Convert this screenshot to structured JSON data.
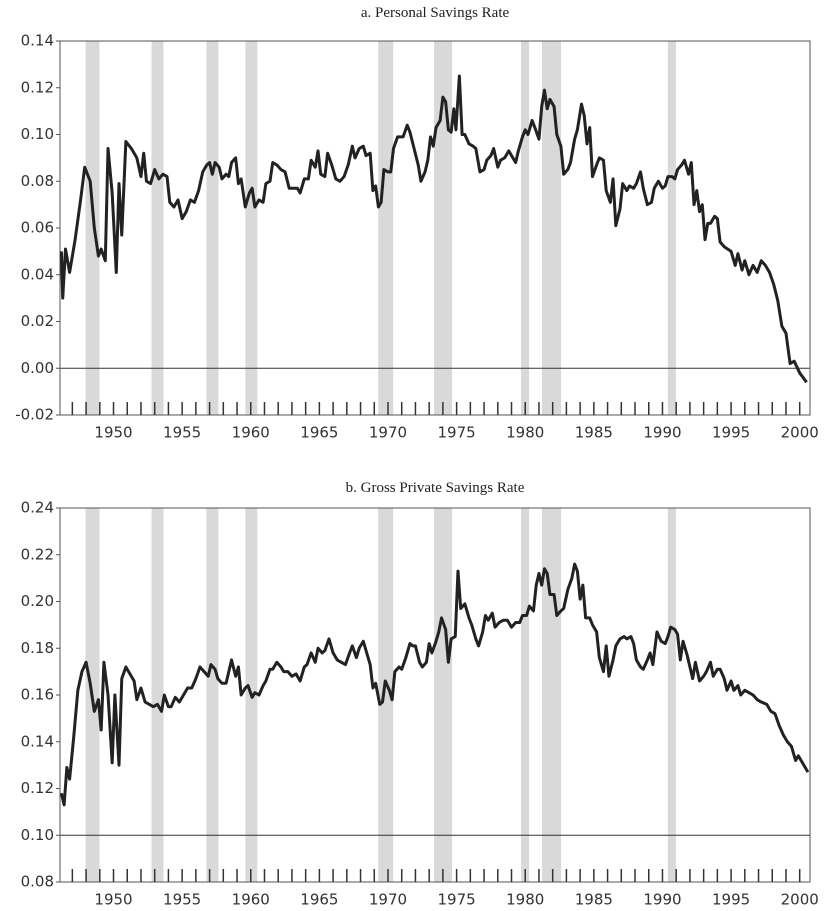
{
  "chart_data": [
    {
      "type": "line",
      "title": "a. Personal Savings Rate",
      "xlim": [
        1946.1,
        2000.75
      ],
      "ylim": [
        -0.02,
        0.14
      ],
      "xticks": [
        1950,
        1955,
        1960,
        1965,
        1970,
        1975,
        1980,
        1985,
        1990,
        1995,
        2000
      ],
      "xminorticks": [
        1947,
        1948,
        1949,
        1951,
        1952,
        1953,
        1954,
        1956,
        1957,
        1958,
        1959,
        1961,
        1962,
        1963,
        1964,
        1966,
        1967,
        1968,
        1969,
        1971,
        1972,
        1973,
        1974,
        1976,
        1977,
        1978,
        1979,
        1981,
        1982,
        1983,
        1984,
        1986,
        1987,
        1988,
        1989,
        1991,
        1992,
        1993,
        1994,
        1996,
        1997,
        1998,
        1999
      ],
      "yticks": [
        0.14,
        0.12,
        {
          "value": 0.1,
          "label": "0.10"
        },
        0.08,
        0.06,
        0.04,
        0.02,
        {
          "value": 0,
          "label": "0.00"
        },
        -0.02
      ],
      "hline": 0,
      "recession_color": "#d9d9d9",
      "recessions": [
        [
          1947.96,
          1948.98
        ],
        [
          1952.77,
          1953.64
        ],
        [
          1956.77,
          1957.64
        ],
        [
          1959.61,
          1960.48
        ],
        [
          1969.29,
          1970.38
        ],
        [
          1973.36,
          1974.67
        ],
        [
          1979.69,
          1980.28
        ],
        [
          1981.22,
          1982.61
        ],
        [
          1990.39,
          1990.98
        ]
      ],
      "color": "#222222",
      "x": [
        1946.2,
        1946.3,
        1946.5,
        1946.8,
        1947.2,
        1947.6,
        1947.9,
        1948.3,
        1948.6,
        1948.9,
        1949.1,
        1949.4,
        1949.6,
        1949.9,
        1950.2,
        1950.4,
        1950.6,
        1950.9,
        1951.3,
        1951.7,
        1952.0,
        1952.2,
        1952.4,
        1952.7,
        1953.0,
        1953.3,
        1953.6,
        1953.9,
        1954.1,
        1954.4,
        1954.7,
        1955.0,
        1955.3,
        1955.6,
        1955.9,
        1956.2,
        1956.5,
        1956.8,
        1957.0,
        1957.2,
        1957.4,
        1957.7,
        1957.9,
        1958.2,
        1958.4,
        1958.6,
        1958.9,
        1959.1,
        1959.3,
        1959.6,
        1959.9,
        1960.1,
        1960.3,
        1960.6,
        1960.9,
        1961.1,
        1961.4,
        1961.6,
        1961.9,
        1962.2,
        1962.5,
        1962.8,
        1963.1,
        1963.4,
        1963.6,
        1963.9,
        1964.2,
        1964.4,
        1964.7,
        1964.9,
        1965.1,
        1965.4,
        1965.6,
        1965.9,
        1966.2,
        1966.5,
        1966.8,
        1967.1,
        1967.4,
        1967.6,
        1967.9,
        1968.2,
        1968.4,
        1968.7,
        1968.9,
        1969.1,
        1969.3,
        1969.5,
        1969.7,
        1970.0,
        1970.2,
        1970.4,
        1970.7,
        1970.9,
        1971.1,
        1971.4,
        1971.6,
        1971.9,
        1972.2,
        1972.4,
        1972.7,
        1972.9,
        1973.1,
        1973.3,
        1973.5,
        1973.8,
        1974.0,
        1974.2,
        1974.4,
        1974.6,
        1974.8,
        1974.95,
        1975.2,
        1975.4,
        1975.6,
        1975.9,
        1976.2,
        1976.4,
        1976.7,
        1977.0,
        1977.2,
        1977.5,
        1977.7,
        1978.0,
        1978.2,
        1978.5,
        1978.8,
        1979.0,
        1979.3,
        1979.5,
        1979.8,
        1980.0,
        1980.2,
        1980.5,
        1980.7,
        1981.0,
        1981.2,
        1981.4,
        1981.6,
        1981.8,
        1982.1,
        1982.3,
        1982.6,
        1982.8,
        1983.1,
        1983.3,
        1983.6,
        1983.8,
        1984.1,
        1984.3,
        1984.5,
        1984.7,
        1984.9,
        1985.2,
        1985.4,
        1985.7,
        1985.9,
        1986.2,
        1986.4,
        1986.6,
        1986.9,
        1987.1,
        1987.4,
        1987.6,
        1987.9,
        1988.1,
        1988.4,
        1988.6,
        1988.9,
        1989.2,
        1989.4,
        1989.7,
        1990.0,
        1990.2,
        1990.4,
        1990.7,
        1990.9,
        1991.1,
        1991.4,
        1991.6,
        1991.9,
        1992.1,
        1992.3,
        1992.5,
        1992.7,
        1992.9,
        1993.1,
        1993.3,
        1993.5,
        1993.8,
        1994.0,
        1994.2,
        1994.5,
        1995.0,
        1995.3,
        1995.5,
        1995.8,
        1996.0,
        1996.3,
        1996.6,
        1996.9,
        1997.2,
        1997.5,
        1997.8,
        1998.1,
        1998.4,
        1998.7,
        1999.0,
        1999.3,
        1999.6,
        2000.0,
        2000.5
      ],
      "values": [
        0.05,
        0.03,
        0.051,
        0.041,
        0.055,
        0.072,
        0.086,
        0.08,
        0.06,
        0.048,
        0.051,
        0.046,
        0.094,
        0.075,
        0.041,
        0.079,
        0.057,
        0.097,
        0.094,
        0.09,
        0.082,
        0.092,
        0.08,
        0.079,
        0.085,
        0.081,
        0.083,
        0.082,
        0.071,
        0.069,
        0.072,
        0.064,
        0.067,
        0.072,
        0.071,
        0.076,
        0.084,
        0.087,
        0.088,
        0.083,
        0.088,
        0.086,
        0.081,
        0.083,
        0.082,
        0.088,
        0.09,
        0.079,
        0.081,
        0.069,
        0.075,
        0.077,
        0.069,
        0.072,
        0.071,
        0.079,
        0.08,
        0.088,
        0.087,
        0.085,
        0.084,
        0.077,
        0.077,
        0.077,
        0.075,
        0.081,
        0.081,
        0.089,
        0.086,
        0.093,
        0.083,
        0.082,
        0.092,
        0.087,
        0.081,
        0.08,
        0.082,
        0.087,
        0.095,
        0.09,
        0.094,
        0.095,
        0.091,
        0.092,
        0.076,
        0.078,
        0.069,
        0.071,
        0.085,
        0.084,
        0.084,
        0.094,
        0.099,
        0.099,
        0.099,
        0.104,
        0.101,
        0.094,
        0.087,
        0.08,
        0.084,
        0.089,
        0.099,
        0.095,
        0.103,
        0.106,
        0.116,
        0.114,
        0.102,
        0.101,
        0.111,
        0.102,
        0.125,
        0.1,
        0.1,
        0.096,
        0.095,
        0.094,
        0.084,
        0.085,
        0.089,
        0.091,
        0.094,
        0.086,
        0.089,
        0.09,
        0.093,
        0.091,
        0.088,
        0.093,
        0.099,
        0.102,
        0.1,
        0.106,
        0.103,
        0.098,
        0.112,
        0.119,
        0.111,
        0.115,
        0.112,
        0.1,
        0.095,
        0.083,
        0.085,
        0.088,
        0.098,
        0.102,
        0.113,
        0.108,
        0.096,
        0.103,
        0.082,
        0.087,
        0.09,
        0.089,
        0.076,
        0.071,
        0.081,
        0.061,
        0.068,
        0.079,
        0.076,
        0.078,
        0.077,
        0.079,
        0.084,
        0.077,
        0.07,
        0.071,
        0.077,
        0.08,
        0.077,
        0.078,
        0.082,
        0.082,
        0.081,
        0.085,
        0.087,
        0.089,
        0.083,
        0.088,
        0.07,
        0.076,
        0.067,
        0.07,
        0.055,
        0.062,
        0.062,
        0.065,
        0.064,
        0.054,
        0.052,
        0.05,
        0.044,
        0.049,
        0.042,
        0.046,
        0.04,
        0.044,
        0.041,
        0.046,
        0.044,
        0.041,
        0.036,
        0.029,
        0.018,
        0.015,
        0.002,
        0.003,
        -0.002,
        -0.006
      ]
    },
    {
      "type": "line",
      "title": "b. Gross Private Savings Rate",
      "xlim": [
        1946.1,
        2000.75
      ],
      "ylim": [
        0.08,
        0.24
      ],
      "xticks": [
        1950,
        1955,
        1960,
        1965,
        1970,
        1975,
        1980,
        1985,
        1990,
        1995,
        2000
      ],
      "xminorticks": [
        1947,
        1948,
        1949,
        1951,
        1952,
        1953,
        1954,
        1956,
        1957,
        1958,
        1959,
        1961,
        1962,
        1963,
        1964,
        1966,
        1967,
        1968,
        1969,
        1971,
        1972,
        1973,
        1974,
        1976,
        1977,
        1978,
        1979,
        1981,
        1982,
        1983,
        1984,
        1986,
        1987,
        1988,
        1989,
        1991,
        1992,
        1993,
        1994,
        1996,
        1997,
        1998,
        1999
      ],
      "yticks": [
        0.24,
        0.22,
        {
          "value": 0.2,
          "label": "0.20"
        },
        0.18,
        0.16,
        0.14,
        0.12,
        {
          "value": 0.1,
          "label": "0.10"
        },
        0.08
      ],
      "hline": 0.1,
      "recession_color": "#d9d9d9",
      "recessions": [
        [
          1947.96,
          1948.98
        ],
        [
          1952.77,
          1953.64
        ],
        [
          1956.77,
          1957.64
        ],
        [
          1959.61,
          1960.48
        ],
        [
          1969.29,
          1970.38
        ],
        [
          1973.36,
          1974.67
        ],
        [
          1979.69,
          1980.28
        ],
        [
          1981.22,
          1982.61
        ],
        [
          1990.39,
          1990.98
        ]
      ],
      "color": "#222222",
      "x": [
        1946.2,
        1946.4,
        1946.6,
        1946.8,
        1947.1,
        1947.4,
        1947.7,
        1948.0,
        1948.3,
        1948.6,
        1948.9,
        1949.1,
        1949.3,
        1949.6,
        1949.9,
        1950.1,
        1950.4,
        1950.6,
        1950.9,
        1951.2,
        1951.5,
        1951.7,
        1952.0,
        1952.3,
        1952.6,
        1952.9,
        1953.2,
        1953.5,
        1953.7,
        1954.0,
        1954.2,
        1954.5,
        1954.8,
        1955.1,
        1955.4,
        1955.7,
        1956.0,
        1956.3,
        1956.6,
        1956.9,
        1957.1,
        1957.4,
        1957.6,
        1957.9,
        1958.2,
        1958.4,
        1958.6,
        1958.9,
        1959.1,
        1959.3,
        1959.6,
        1959.8,
        1960.1,
        1960.3,
        1960.6,
        1960.9,
        1961.1,
        1961.4,
        1961.6,
        1961.9,
        1962.2,
        1962.4,
        1962.7,
        1963.0,
        1963.3,
        1963.6,
        1963.9,
        1964.1,
        1964.4,
        1964.7,
        1964.9,
        1965.2,
        1965.4,
        1965.7,
        1966.0,
        1966.3,
        1966.6,
        1966.9,
        1967.2,
        1967.4,
        1967.7,
        1967.9,
        1968.2,
        1968.5,
        1968.7,
        1968.9,
        1969.1,
        1969.4,
        1969.6,
        1969.8,
        1970.1,
        1970.3,
        1970.5,
        1970.8,
        1971.0,
        1971.3,
        1971.6,
        1971.8,
        1972.0,
        1972.3,
        1972.5,
        1972.8,
        1973.0,
        1973.2,
        1973.5,
        1973.7,
        1973.9,
        1974.2,
        1974.4,
        1974.6,
        1974.9,
        1975.1,
        1975.3,
        1975.6,
        1975.9,
        1976.1,
        1976.4,
        1976.6,
        1976.9,
        1977.1,
        1977.3,
        1977.6,
        1977.8,
        1978.1,
        1978.4,
        1978.7,
        1979.0,
        1979.3,
        1979.6,
        1979.8,
        1980.1,
        1980.3,
        1980.6,
        1980.8,
        1981.0,
        1981.2,
        1981.4,
        1981.6,
        1981.8,
        1982.1,
        1982.3,
        1982.6,
        1982.8,
        1983.1,
        1983.4,
        1983.6,
        1983.8,
        1984.0,
        1984.2,
        1984.4,
        1984.7,
        1984.9,
        1985.2,
        1985.4,
        1985.7,
        1985.9,
        1986.1,
        1986.4,
        1986.6,
        1986.9,
        1987.2,
        1987.4,
        1987.7,
        1987.9,
        1988.1,
        1988.4,
        1988.6,
        1988.9,
        1989.1,
        1989.3,
        1989.6,
        1989.9,
        1990.2,
        1990.4,
        1990.6,
        1990.9,
        1991.1,
        1991.3,
        1991.5,
        1991.8,
        1992.0,
        1992.2,
        1992.4,
        1992.7,
        1993.0,
        1993.2,
        1993.5,
        1993.7,
        1994.0,
        1994.2,
        1994.5,
        1994.7,
        1995.0,
        1995.2,
        1995.5,
        1995.7,
        1996.0,
        1996.3,
        1996.6,
        1996.9,
        1997.2,
        1997.6,
        1997.9,
        1998.2,
        1998.5,
        1998.8,
        1999.1,
        1999.4,
        1999.7,
        1999.9,
        2000.2,
        2000.6
      ],
      "values": [
        0.118,
        0.113,
        0.129,
        0.124,
        0.142,
        0.162,
        0.17,
        0.174,
        0.165,
        0.153,
        0.158,
        0.145,
        0.174,
        0.16,
        0.131,
        0.16,
        0.13,
        0.167,
        0.172,
        0.169,
        0.166,
        0.158,
        0.163,
        0.157,
        0.156,
        0.155,
        0.156,
        0.153,
        0.16,
        0.155,
        0.155,
        0.159,
        0.157,
        0.16,
        0.163,
        0.163,
        0.167,
        0.172,
        0.17,
        0.168,
        0.173,
        0.171,
        0.167,
        0.165,
        0.165,
        0.17,
        0.175,
        0.168,
        0.172,
        0.16,
        0.163,
        0.164,
        0.159,
        0.161,
        0.16,
        0.164,
        0.166,
        0.171,
        0.171,
        0.174,
        0.172,
        0.17,
        0.17,
        0.168,
        0.169,
        0.166,
        0.172,
        0.173,
        0.178,
        0.174,
        0.18,
        0.178,
        0.179,
        0.184,
        0.178,
        0.175,
        0.174,
        0.173,
        0.178,
        0.181,
        0.176,
        0.18,
        0.183,
        0.177,
        0.173,
        0.163,
        0.165,
        0.156,
        0.157,
        0.166,
        0.162,
        0.158,
        0.17,
        0.172,
        0.171,
        0.176,
        0.182,
        0.181,
        0.181,
        0.174,
        0.172,
        0.174,
        0.182,
        0.178,
        0.183,
        0.187,
        0.193,
        0.188,
        0.174,
        0.184,
        0.185,
        0.213,
        0.197,
        0.199,
        0.193,
        0.19,
        0.184,
        0.181,
        0.187,
        0.194,
        0.192,
        0.195,
        0.189,
        0.191,
        0.192,
        0.192,
        0.189,
        0.191,
        0.191,
        0.194,
        0.194,
        0.198,
        0.196,
        0.207,
        0.212,
        0.207,
        0.214,
        0.212,
        0.203,
        0.203,
        0.194,
        0.196,
        0.197,
        0.205,
        0.21,
        0.216,
        0.213,
        0.201,
        0.207,
        0.193,
        0.193,
        0.19,
        0.187,
        0.176,
        0.17,
        0.181,
        0.168,
        0.175,
        0.181,
        0.184,
        0.185,
        0.184,
        0.185,
        0.182,
        0.175,
        0.172,
        0.171,
        0.175,
        0.178,
        0.173,
        0.187,
        0.183,
        0.182,
        0.185,
        0.189,
        0.188,
        0.186,
        0.175,
        0.183,
        0.177,
        0.172,
        0.167,
        0.174,
        0.166,
        0.168,
        0.17,
        0.174,
        0.168,
        0.171,
        0.171,
        0.167,
        0.162,
        0.166,
        0.162,
        0.164,
        0.16,
        0.162,
        0.161,
        0.16,
        0.158,
        0.157,
        0.156,
        0.153,
        0.152,
        0.147,
        0.143,
        0.14,
        0.138,
        0.132,
        0.134,
        0.131,
        0.127
      ]
    }
  ]
}
